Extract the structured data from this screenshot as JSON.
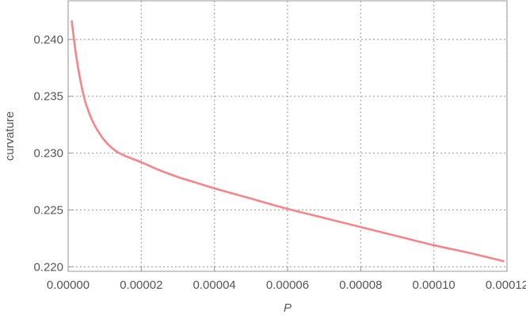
{
  "chart_data": {
    "type": "line",
    "xlabel": "P",
    "ylabel": "curvature",
    "xlim": [
      0.0,
      0.00012
    ],
    "ylim": [
      0.2196,
      0.2434
    ],
    "x_ticks": [
      {
        "value": 0.0,
        "label": "0.00000"
      },
      {
        "value": 2e-05,
        "label": "0.00002"
      },
      {
        "value": 4e-05,
        "label": "0.00004"
      },
      {
        "value": 6e-05,
        "label": "0.00006"
      },
      {
        "value": 8e-05,
        "label": "0.00008"
      },
      {
        "value": 0.0001,
        "label": "0.00010"
      },
      {
        "value": 0.00012,
        "label": "0.00012"
      }
    ],
    "y_ticks": [
      {
        "value": 0.22,
        "label": "0.220"
      },
      {
        "value": 0.225,
        "label": "0.225"
      },
      {
        "value": 0.23,
        "label": "0.230"
      },
      {
        "value": 0.235,
        "label": "0.235"
      },
      {
        "value": 0.24,
        "label": "0.240"
      }
    ],
    "grid": true,
    "legend": "none",
    "series": [
      {
        "color": "#f4868a",
        "points": [
          [
            1e-06,
            0.2416
          ],
          [
            2e-06,
            0.239
          ],
          [
            3e-06,
            0.237
          ],
          [
            4e-06,
            0.2354
          ],
          [
            5e-06,
            0.2342
          ],
          [
            7e-06,
            0.2326
          ],
          [
            1e-05,
            0.2311
          ],
          [
            1.3e-05,
            0.2302
          ],
          [
            1.6e-05,
            0.2297
          ],
          [
            2e-05,
            0.2292
          ],
          [
            2.5e-05,
            0.2285
          ],
          [
            3e-05,
            0.2279
          ],
          [
            3.5e-05,
            0.2274
          ],
          [
            4e-05,
            0.2269
          ],
          [
            5e-05,
            0.226
          ],
          [
            6e-05,
            0.2251
          ],
          [
            7e-05,
            0.2243
          ],
          [
            8e-05,
            0.2235
          ],
          [
            9e-05,
            0.2227
          ],
          [
            0.0001,
            0.2219
          ],
          [
            0.00011,
            0.2212
          ],
          [
            0.000119,
            0.2205
          ]
        ]
      }
    ]
  }
}
